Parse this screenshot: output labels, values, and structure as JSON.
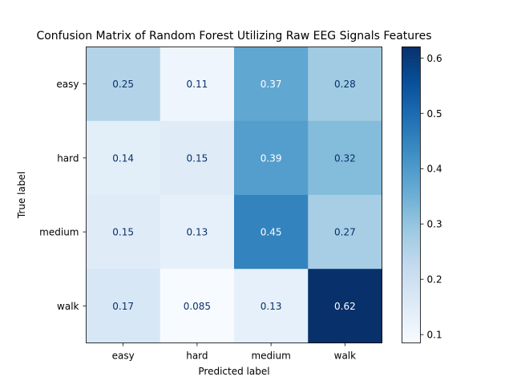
{
  "chart_data": {
    "type": "heatmap",
    "title": "Confusion Matrix of Random Forest Utilizing Raw EEG Signals Features",
    "xlabel": "Predicted label",
    "ylabel": "True label",
    "x_categories": [
      "easy",
      "hard",
      "medium",
      "walk"
    ],
    "y_categories": [
      "easy",
      "hard",
      "medium",
      "walk"
    ],
    "values": [
      [
        0.25,
        0.11,
        0.37,
        0.28
      ],
      [
        0.14,
        0.15,
        0.39,
        0.32
      ],
      [
        0.15,
        0.13,
        0.45,
        0.27
      ],
      [
        0.17,
        0.085,
        0.13,
        0.62
      ]
    ],
    "cell_labels": [
      [
        "0.25",
        "0.11",
        "0.37",
        "0.28"
      ],
      [
        "0.14",
        "0.15",
        "0.39",
        "0.32"
      ],
      [
        "0.15",
        "0.13",
        "0.45",
        "0.27"
      ],
      [
        "0.17",
        "0.085",
        "0.13",
        "0.62"
      ]
    ],
    "colormap": "Blues",
    "colorbar": {
      "range": [
        0.085,
        0.62
      ],
      "ticks": [
        0.1,
        0.2,
        0.3,
        0.4,
        0.5,
        0.6
      ],
      "tick_labels": [
        "0.1",
        "0.2",
        "0.3",
        "0.4",
        "0.5",
        "0.6"
      ]
    },
    "text_colors": {
      "dark": "#08306b",
      "light": "#ffffff"
    }
  }
}
